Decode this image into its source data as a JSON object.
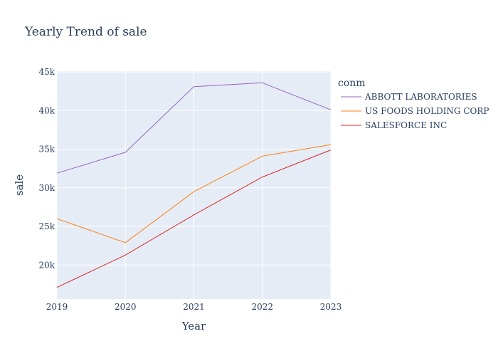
{
  "chart_data": {
    "type": "line",
    "title": "Yearly Trend of sale",
    "xlabel": "Year",
    "ylabel": "sale",
    "x": [
      2019,
      2020,
      2021,
      2022,
      2023
    ],
    "xlim": [
      2019,
      2023
    ],
    "ylim": [
      15600,
      45100
    ],
    "yticks": [
      20000,
      25000,
      30000,
      35000,
      40000,
      45000
    ],
    "ytick_labels": [
      "20k",
      "25k",
      "30k",
      "35k",
      "40k",
      "45k"
    ],
    "xtick_labels": [
      "2019",
      "2020",
      "2021",
      "2022",
      "2023"
    ],
    "grid": true,
    "legend_title": "conm",
    "legend_position": "right",
    "series": [
      {
        "name": "ABBOTT LABORATORIES",
        "color": "#9467bd",
        "values": [
          31900,
          34600,
          43100,
          43600,
          40100
        ]
      },
      {
        "name": "US FOODS HOLDING CORP",
        "color": "#ff7f0e",
        "values": [
          26000,
          22900,
          29500,
          34100,
          35600
        ]
      },
      {
        "name": "SALESFORCE INC",
        "color": "#d62728",
        "values": [
          17100,
          21300,
          26500,
          31400,
          34900
        ]
      }
    ]
  }
}
